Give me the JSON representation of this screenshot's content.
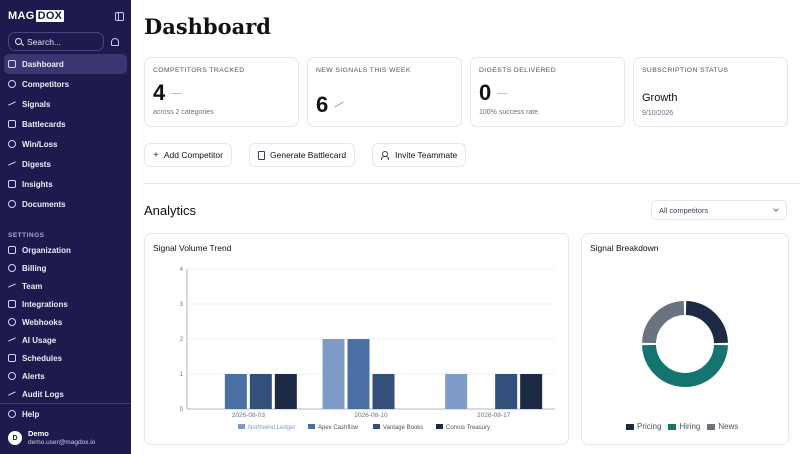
{
  "sidebar": {
    "logo_a": "MAG",
    "logo_b": "DOX",
    "search_placeholder": "Search...",
    "items": [
      {
        "label": "Dashboard",
        "icon": "grid-icon",
        "active": true
      },
      {
        "label": "Competitors",
        "icon": "globe-icon"
      },
      {
        "label": "Signals",
        "icon": "radio-icon"
      },
      {
        "label": "Battlecards",
        "icon": "swords-icon"
      },
      {
        "label": "Win/Loss",
        "icon": "trophy-icon"
      },
      {
        "label": "Digests",
        "icon": "mail-icon"
      },
      {
        "label": "Insights",
        "icon": "trend-icon"
      },
      {
        "label": "Documents",
        "icon": "folder-icon"
      }
    ],
    "settings_label": "SETTINGS",
    "settings_items": [
      {
        "label": "Organization",
        "icon": "building-icon"
      },
      {
        "label": "Billing",
        "icon": "card-icon"
      },
      {
        "label": "Team",
        "icon": "users-icon"
      },
      {
        "label": "Integrations",
        "icon": "plug-icon"
      },
      {
        "label": "Webhooks",
        "icon": "webhook-icon"
      },
      {
        "label": "AI Usage",
        "icon": "sparkle-icon"
      },
      {
        "label": "Schedules",
        "icon": "clock-icon"
      },
      {
        "label": "Alerts",
        "icon": "bell-icon"
      },
      {
        "label": "Audit Logs",
        "icon": "shield-icon"
      }
    ],
    "help_label": "Help",
    "user": {
      "initial": "D",
      "name": "Demo",
      "email": "demo.user@magdox.io"
    }
  },
  "main": {
    "title": "Dashboard",
    "stats": [
      {
        "label": "COMPETITORS TRACKED",
        "value": "4",
        "sub": "across 2 categories"
      },
      {
        "label": "NEW SIGNALS THIS WEEK",
        "value": "6",
        "sub": ""
      },
      {
        "label": "DIGESTS DELIVERED",
        "value": "0",
        "sub": "100% success rate"
      },
      {
        "label": "SUBSCRIPTION STATUS",
        "value": "Growth",
        "sub": "9/10/2026"
      }
    ],
    "actions": {
      "add_competitor": "Add Competitor",
      "generate_battlecard": "Generate Battlecard",
      "invite_teammate": "Invite Teammate"
    },
    "analytics_title": "Analytics",
    "filter_value": "All competitors"
  },
  "chart_data": [
    {
      "type": "bar",
      "title": "Signal Volume Trend",
      "categories": [
        "2026-08-03",
        "2026-08-10",
        "2026-08-17"
      ],
      "series": [
        {
          "name": "Northwind Ledger",
          "color": "#7f9cc8",
          "values": [
            0,
            2,
            1
          ]
        },
        {
          "name": "Apex Cashflow",
          "color": "#4a6fa5",
          "values": [
            1,
            2,
            0
          ]
        },
        {
          "name": "Vantage Books",
          "color": "#34507a",
          "values": [
            1,
            1,
            1
          ]
        },
        {
          "name": "Corvus Treasury",
          "color": "#1c2a45",
          "values": [
            1,
            0,
            1
          ]
        }
      ],
      "ylim": [
        0,
        4
      ],
      "yticks": [
        "0",
        "1",
        "2",
        "3",
        "4"
      ],
      "legend": "bottom"
    },
    {
      "type": "pie",
      "title": "Signal Breakdown",
      "labels": [
        "Pricing",
        "Hiring",
        "News"
      ],
      "values": [
        1,
        2,
        1
      ],
      "colors": [
        "#1c2a45",
        "#14756e",
        "#6b7280"
      ],
      "legend": "bottom"
    }
  ]
}
